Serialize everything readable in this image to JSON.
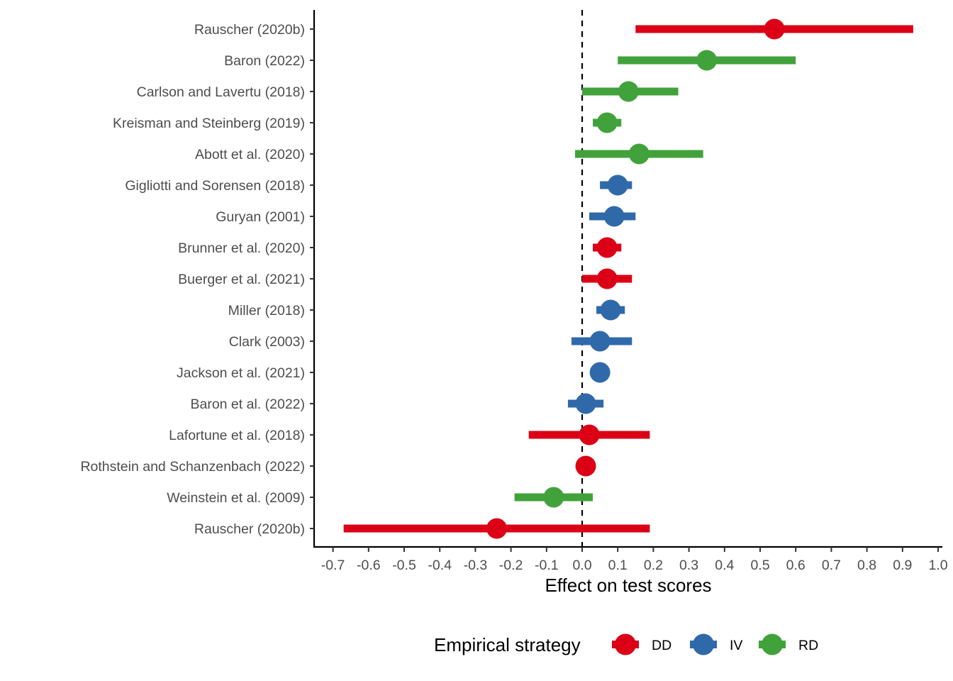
{
  "chart_data": {
    "type": "forest",
    "title": "",
    "xlabel": "Effect on test scores",
    "ylabel": "",
    "xlim": [
      -0.75,
      1.01
    ],
    "xticks": [
      -0.7,
      -0.6,
      -0.5,
      -0.4,
      -0.3,
      -0.2,
      -0.1,
      0.0,
      0.1,
      0.2,
      0.3,
      0.4,
      0.5,
      0.6,
      0.7,
      0.8,
      0.9,
      1.0
    ],
    "xtick_labels": [
      "-0.7",
      "-0.6",
      "-0.5",
      "-0.4",
      "-0.3",
      "-0.2",
      "-0.1",
      "0.0",
      "0.1",
      "0.2",
      "0.3",
      "0.4",
      "0.5",
      "0.6",
      "0.7",
      "0.8",
      "0.9",
      "1.0"
    ],
    "reference_line": 0.0,
    "grid": false,
    "legend": {
      "title": "Empirical strategy",
      "placement": "bottom",
      "entries": [
        {
          "label": "DD",
          "color": "#db0016"
        },
        {
          "label": "IV",
          "color": "#2f69a9"
        },
        {
          "label": "RD",
          "color": "#41a23b"
        }
      ]
    },
    "studies": [
      {
        "label": "Rauscher (2020b)",
        "strategy": "DD",
        "estimate": 0.54,
        "lower": 0.15,
        "upper": 0.93
      },
      {
        "label": "Baron (2022)",
        "strategy": "RD",
        "estimate": 0.35,
        "lower": 0.1,
        "upper": 0.6
      },
      {
        "label": "Carlson and Lavertu (2018)",
        "strategy": "RD",
        "estimate": 0.13,
        "lower": 0.0,
        "upper": 0.27
      },
      {
        "label": "Kreisman and Steinberg (2019)",
        "strategy": "RD",
        "estimate": 0.07,
        "lower": 0.03,
        "upper": 0.11
      },
      {
        "label": "Abott et al. (2020)",
        "strategy": "RD",
        "estimate": 0.16,
        "lower": -0.02,
        "upper": 0.34
      },
      {
        "label": "Gigliotti and Sorensen (2018)",
        "strategy": "IV",
        "estimate": 0.1,
        "lower": 0.05,
        "upper": 0.14
      },
      {
        "label": "Guryan (2001)",
        "strategy": "IV",
        "estimate": 0.09,
        "lower": 0.02,
        "upper": 0.15
      },
      {
        "label": "Brunner et al. (2020)",
        "strategy": "DD",
        "estimate": 0.07,
        "lower": 0.03,
        "upper": 0.11
      },
      {
        "label": "Buerger et al. (2021)",
        "strategy": "DD",
        "estimate": 0.07,
        "lower": 0.0,
        "upper": 0.14
      },
      {
        "label": "Miller (2018)",
        "strategy": "IV",
        "estimate": 0.08,
        "lower": 0.04,
        "upper": 0.12
      },
      {
        "label": "Clark (2003)",
        "strategy": "IV",
        "estimate": 0.05,
        "lower": -0.03,
        "upper": 0.14
      },
      {
        "label": "Jackson et al. (2021)",
        "strategy": "IV",
        "estimate": 0.05,
        "lower": 0.04,
        "upper": 0.06
      },
      {
        "label": "Baron et al. (2022)",
        "strategy": "IV",
        "estimate": 0.01,
        "lower": -0.04,
        "upper": 0.06
      },
      {
        "label": "Lafortune et al. (2018)",
        "strategy": "DD",
        "estimate": 0.02,
        "lower": -0.15,
        "upper": 0.19
      },
      {
        "label": "Rothstein and Schanzenbach (2022)",
        "strategy": "DD",
        "estimate": 0.01,
        "lower": 0.0,
        "upper": 0.02
      },
      {
        "label": "Weinstein et al. (2009)",
        "strategy": "RD",
        "estimate": -0.08,
        "lower": -0.19,
        "upper": 0.03
      },
      {
        "label": "Rauscher (2020b)",
        "strategy": "DD",
        "estimate": -0.24,
        "lower": -0.67,
        "upper": 0.19
      }
    ]
  }
}
